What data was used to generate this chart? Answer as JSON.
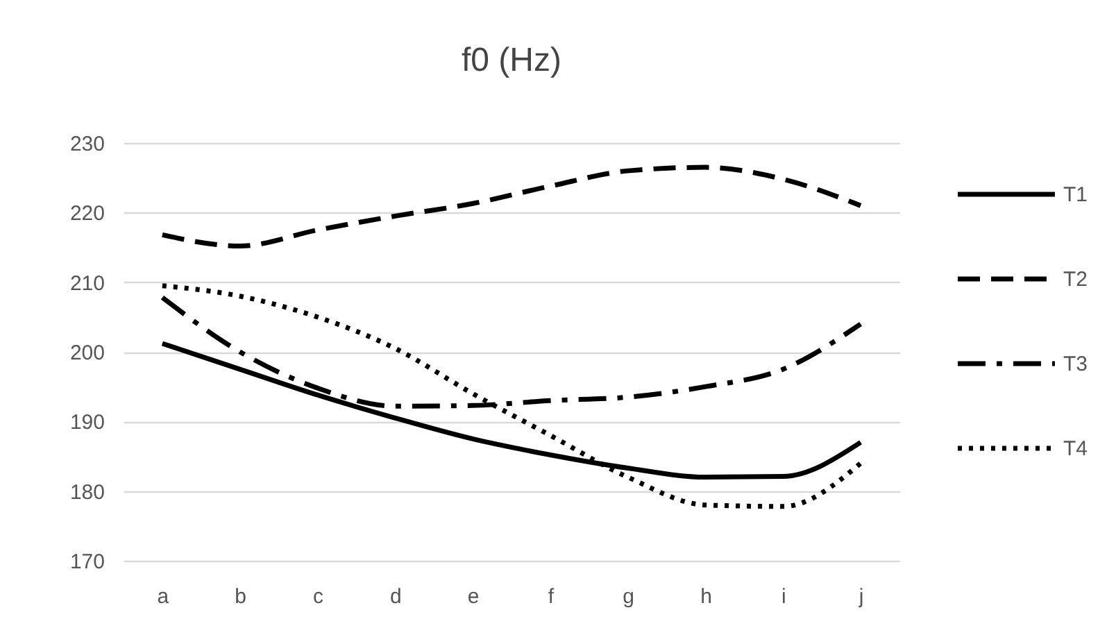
{
  "chart_data": {
    "type": "line",
    "title": "f0 (Hz)",
    "categories": [
      "a",
      "b",
      "c",
      "d",
      "e",
      "f",
      "g",
      "h",
      "i",
      "j"
    ],
    "series": [
      {
        "name": "T1",
        "color": "#000000",
        "line_style": "solid",
        "values": [
          201.2,
          197.5,
          193.8,
          190.5,
          187.5,
          185.2,
          183.3,
          182,
          182.1,
          187
        ]
      },
      {
        "name": "T2",
        "color": "#000000",
        "line_style": "dashed",
        "values": [
          216.8,
          215.2,
          217.5,
          219.5,
          221.3,
          223.8,
          226,
          226.5,
          224.8,
          221
        ]
      },
      {
        "name": "T3",
        "color": "#000000",
        "line_style": "dashdot",
        "values": [
          207.8,
          200,
          194.8,
          192.2,
          192.3,
          193,
          193.5,
          195,
          197.5,
          204
        ]
      },
      {
        "name": "T4",
        "color": "#000000",
        "line_style": "dotted",
        "values": [
          209.5,
          208,
          205,
          200.5,
          194,
          188,
          182,
          178,
          177.8,
          184
        ]
      }
    ],
    "ylim": [
      170,
      230
    ],
    "yticks": [
      170,
      180,
      190,
      200,
      210,
      220,
      230
    ],
    "grid": "y",
    "legend": "right"
  }
}
